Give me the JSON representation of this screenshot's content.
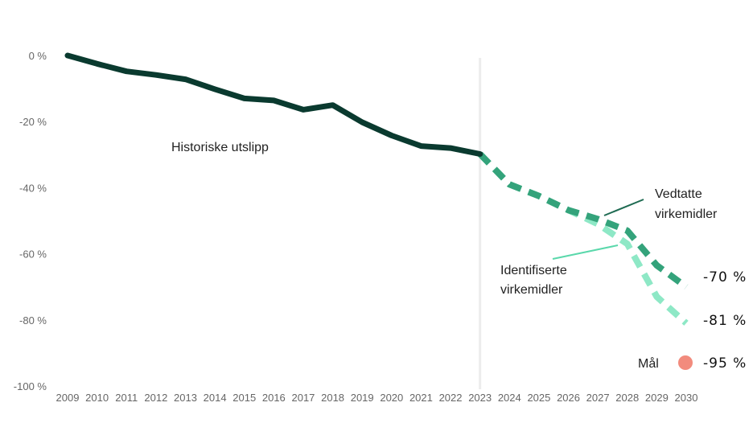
{
  "chart_data": {
    "type": "line",
    "x": [
      2009,
      2010,
      2011,
      2012,
      2013,
      2014,
      2015,
      2016,
      2017,
      2018,
      2019,
      2020,
      2021,
      2022,
      2023,
      2024,
      2025,
      2026,
      2027,
      2028,
      2029,
      2030
    ],
    "x_tick_labels": [
      "2009",
      "2010",
      "2011",
      "2012",
      "2013",
      "2014",
      "2015",
      "2016",
      "2017",
      "2018",
      "2019",
      "2020",
      "2021",
      "2022",
      "2023",
      "2024",
      "2025",
      "2026",
      "2027",
      "2028",
      "2029",
      "2030"
    ],
    "y_tick_labels": [
      "0 %",
      "-20 %",
      "-40 %",
      "-60 %",
      "-80 %",
      "-100 %"
    ],
    "y_ticks": [
      0,
      -20,
      -40,
      -60,
      -80,
      -100
    ],
    "ylim": [
      -100,
      0
    ],
    "xlim": [
      2009,
      2030
    ],
    "divider_year": 2023,
    "grid": false,
    "series": [
      {
        "name": "Historiske utslipp",
        "style": "solid",
        "color": "#0a3a2f",
        "x": [
          2009,
          2010,
          2011,
          2012,
          2013,
          2014,
          2015,
          2016,
          2017,
          2018,
          2019,
          2020,
          2021,
          2022,
          2023
        ],
        "values": [
          0,
          -2.5,
          -4.8,
          -5.9,
          -7.2,
          -10.2,
          -13.0,
          -13.6,
          -16.4,
          -15.0,
          -20.2,
          -24.2,
          -27.4,
          -28.0,
          -29.8
        ]
      },
      {
        "name": "Vedtatte virkemidler",
        "style": "dashed",
        "color": "#34a37b",
        "x": [
          2023,
          2024,
          2025,
          2026,
          2027,
          2028,
          2029,
          2030
        ],
        "values": [
          -29.8,
          -39.0,
          -42.5,
          -46.8,
          -49.5,
          -53.0,
          -63.5,
          -70.0
        ]
      },
      {
        "name": "Identifiserte virkemidler",
        "style": "dashed",
        "color": "#8ee8c6",
        "x": [
          2023,
          2024,
          2025,
          2026,
          2027,
          2028,
          2029,
          2030
        ],
        "values": [
          -29.8,
          -39.0,
          -42.5,
          -46.8,
          -51.0,
          -57.0,
          -73.0,
          -81.0
        ]
      }
    ],
    "annotations": {
      "historic_label": "Historiske utslipp",
      "vedtatte_line1": "Vedtatte",
      "vedtatte_line2": "virkemidler",
      "identifiserte_line1": "Identifiserte",
      "identifiserte_line2": "virkemidler",
      "end_vedtatte": "-70 %",
      "end_identifiserte": "-81 %",
      "goal_label": "Mål",
      "goal_value": "-95 %",
      "goal_color": "#f28b7d"
    }
  }
}
